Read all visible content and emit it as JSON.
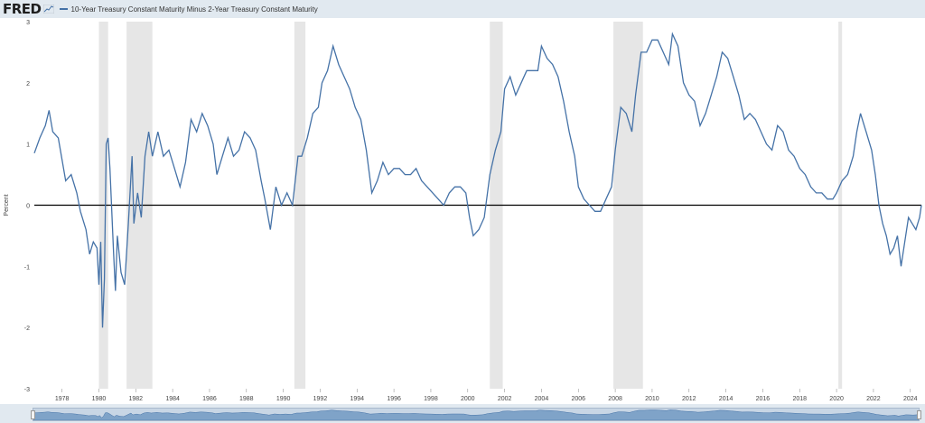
{
  "header": {
    "logo_text": "FRED",
    "logo_icon": "chart-line-icon",
    "legend_label": "10-Year Treasury Constant Maturity Minus 2-Year Treasury Constant Maturity",
    "series_color": "#4572a7"
  },
  "chart_data": {
    "type": "line",
    "title": "",
    "xlabel": "",
    "ylabel": "Percent",
    "xlim": [
      1976.5,
      2024.6
    ],
    "ylim": [
      -3,
      3
    ],
    "yticks": [
      -3,
      -2,
      -1,
      0,
      1,
      2,
      3
    ],
    "xticks": [
      "1978",
      "1980",
      "1982",
      "1984",
      "1986",
      "1988",
      "1990",
      "1992",
      "1994",
      "1996",
      "1998",
      "2000",
      "2002",
      "2004",
      "2006",
      "2008",
      "2010",
      "2012",
      "2014",
      "2016",
      "2018",
      "2020",
      "2022",
      "2024"
    ],
    "grid": false,
    "legend_position": "top-left",
    "recessions": [
      [
        1980.0,
        1980.5
      ],
      [
        1981.5,
        1982.9
      ],
      [
        1990.6,
        1991.2
      ],
      [
        2001.2,
        2001.9
      ],
      [
        2007.9,
        2009.5
      ],
      [
        2020.1,
        2020.3
      ]
    ],
    "series": [
      {
        "name": "10-Year Treasury Constant Maturity Minus 2-Year Treasury Constant Maturity",
        "color": "#4572a7",
        "points": [
          [
            1976.5,
            0.85
          ],
          [
            1976.8,
            1.1
          ],
          [
            1977.1,
            1.3
          ],
          [
            1977.3,
            1.55
          ],
          [
            1977.5,
            1.2
          ],
          [
            1977.8,
            1.1
          ],
          [
            1978.0,
            0.75
          ],
          [
            1978.2,
            0.4
          ],
          [
            1978.5,
            0.5
          ],
          [
            1978.8,
            0.2
          ],
          [
            1979.0,
            -0.1
          ],
          [
            1979.3,
            -0.4
          ],
          [
            1979.5,
            -0.8
          ],
          [
            1979.7,
            -0.6
          ],
          [
            1979.9,
            -0.7
          ],
          [
            1980.0,
            -1.3
          ],
          [
            1980.1,
            -0.6
          ],
          [
            1980.2,
            -2.0
          ],
          [
            1980.3,
            -1.2
          ],
          [
            1980.4,
            1.0
          ],
          [
            1980.5,
            1.1
          ],
          [
            1980.6,
            0.6
          ],
          [
            1980.8,
            -0.8
          ],
          [
            1980.9,
            -1.4
          ],
          [
            1981.0,
            -0.5
          ],
          [
            1981.2,
            -1.1
          ],
          [
            1981.4,
            -1.3
          ],
          [
            1981.6,
            -0.3
          ],
          [
            1981.8,
            0.8
          ],
          [
            1981.9,
            -0.3
          ],
          [
            1982.1,
            0.2
          ],
          [
            1982.3,
            -0.2
          ],
          [
            1982.5,
            0.8
          ],
          [
            1982.7,
            1.2
          ],
          [
            1982.9,
            0.8
          ],
          [
            1983.2,
            1.2
          ],
          [
            1983.5,
            0.8
          ],
          [
            1983.8,
            0.9
          ],
          [
            1984.1,
            0.6
          ],
          [
            1984.4,
            0.3
          ],
          [
            1984.7,
            0.7
          ],
          [
            1985.0,
            1.4
          ],
          [
            1985.3,
            1.2
          ],
          [
            1985.6,
            1.5
          ],
          [
            1985.9,
            1.3
          ],
          [
            1986.2,
            1.0
          ],
          [
            1986.4,
            0.5
          ],
          [
            1986.7,
            0.8
          ],
          [
            1987.0,
            1.1
          ],
          [
            1987.3,
            0.8
          ],
          [
            1987.6,
            0.9
          ],
          [
            1987.9,
            1.2
          ],
          [
            1988.2,
            1.1
          ],
          [
            1988.5,
            0.9
          ],
          [
            1988.8,
            0.4
          ],
          [
            1989.0,
            0.1
          ],
          [
            1989.3,
            -0.4
          ],
          [
            1989.6,
            0.3
          ],
          [
            1989.9,
            0.0
          ],
          [
            1990.2,
            0.2
          ],
          [
            1990.5,
            0.0
          ],
          [
            1990.8,
            0.8
          ],
          [
            1991.0,
            0.8
          ],
          [
            1991.3,
            1.1
          ],
          [
            1991.6,
            1.5
          ],
          [
            1991.9,
            1.6
          ],
          [
            1992.1,
            2.0
          ],
          [
            1992.4,
            2.2
          ],
          [
            1992.7,
            2.6
          ],
          [
            1993.0,
            2.3
          ],
          [
            1993.3,
            2.1
          ],
          [
            1993.6,
            1.9
          ],
          [
            1993.9,
            1.6
          ],
          [
            1994.2,
            1.4
          ],
          [
            1994.5,
            0.9
          ],
          [
            1994.8,
            0.2
          ],
          [
            1995.1,
            0.4
          ],
          [
            1995.4,
            0.7
          ],
          [
            1995.7,
            0.5
          ],
          [
            1996.0,
            0.6
          ],
          [
            1996.3,
            0.6
          ],
          [
            1996.6,
            0.5
          ],
          [
            1996.9,
            0.5
          ],
          [
            1997.2,
            0.6
          ],
          [
            1997.5,
            0.4
          ],
          [
            1997.8,
            0.3
          ],
          [
            1998.1,
            0.2
          ],
          [
            1998.4,
            0.1
          ],
          [
            1998.7,
            0.0
          ],
          [
            1999.0,
            0.2
          ],
          [
            1999.3,
            0.3
          ],
          [
            1999.6,
            0.3
          ],
          [
            1999.9,
            0.2
          ],
          [
            2000.1,
            -0.2
          ],
          [
            2000.3,
            -0.5
          ],
          [
            2000.6,
            -0.4
          ],
          [
            2000.9,
            -0.2
          ],
          [
            2001.2,
            0.5
          ],
          [
            2001.5,
            0.9
          ],
          [
            2001.8,
            1.2
          ],
          [
            2002.0,
            1.9
          ],
          [
            2002.3,
            2.1
          ],
          [
            2002.6,
            1.8
          ],
          [
            2002.9,
            2.0
          ],
          [
            2003.2,
            2.2
          ],
          [
            2003.5,
            2.2
          ],
          [
            2003.8,
            2.2
          ],
          [
            2004.0,
            2.6
          ],
          [
            2004.3,
            2.4
          ],
          [
            2004.6,
            2.3
          ],
          [
            2004.9,
            2.1
          ],
          [
            2005.2,
            1.7
          ],
          [
            2005.5,
            1.2
          ],
          [
            2005.8,
            0.8
          ],
          [
            2006.0,
            0.3
          ],
          [
            2006.3,
            0.1
          ],
          [
            2006.6,
            0.0
          ],
          [
            2006.9,
            -0.1
          ],
          [
            2007.2,
            -0.1
          ],
          [
            2007.5,
            0.1
          ],
          [
            2007.8,
            0.3
          ],
          [
            2008.0,
            0.9
          ],
          [
            2008.3,
            1.6
          ],
          [
            2008.6,
            1.5
          ],
          [
            2008.9,
            1.2
          ],
          [
            2009.1,
            1.8
          ],
          [
            2009.4,
            2.5
          ],
          [
            2009.7,
            2.5
          ],
          [
            2010.0,
            2.7
          ],
          [
            2010.3,
            2.7
          ],
          [
            2010.6,
            2.5
          ],
          [
            2010.9,
            2.3
          ],
          [
            2011.1,
            2.8
          ],
          [
            2011.4,
            2.6
          ],
          [
            2011.7,
            2.0
          ],
          [
            2012.0,
            1.8
          ],
          [
            2012.3,
            1.7
          ],
          [
            2012.6,
            1.3
          ],
          [
            2012.9,
            1.5
          ],
          [
            2013.2,
            1.8
          ],
          [
            2013.5,
            2.1
          ],
          [
            2013.8,
            2.5
          ],
          [
            2014.1,
            2.4
          ],
          [
            2014.4,
            2.1
          ],
          [
            2014.7,
            1.8
          ],
          [
            2015.0,
            1.4
          ],
          [
            2015.3,
            1.5
          ],
          [
            2015.6,
            1.4
          ],
          [
            2015.9,
            1.2
          ],
          [
            2016.2,
            1.0
          ],
          [
            2016.5,
            0.9
          ],
          [
            2016.8,
            1.3
          ],
          [
            2017.1,
            1.2
          ],
          [
            2017.4,
            0.9
          ],
          [
            2017.7,
            0.8
          ],
          [
            2018.0,
            0.6
          ],
          [
            2018.3,
            0.5
          ],
          [
            2018.6,
            0.3
          ],
          [
            2018.9,
            0.2
          ],
          [
            2019.2,
            0.2
          ],
          [
            2019.5,
            0.1
          ],
          [
            2019.8,
            0.1
          ],
          [
            2020.0,
            0.2
          ],
          [
            2020.3,
            0.4
          ],
          [
            2020.6,
            0.5
          ],
          [
            2020.9,
            0.8
          ],
          [
            2021.1,
            1.2
          ],
          [
            2021.3,
            1.5
          ],
          [
            2021.6,
            1.2
          ],
          [
            2021.9,
            0.9
          ],
          [
            2022.1,
            0.5
          ],
          [
            2022.3,
            0.0
          ],
          [
            2022.5,
            -0.3
          ],
          [
            2022.7,
            -0.5
          ],
          [
            2022.9,
            -0.8
          ],
          [
            2023.1,
            -0.7
          ],
          [
            2023.3,
            -0.5
          ],
          [
            2023.5,
            -1.0
          ],
          [
            2023.7,
            -0.6
          ],
          [
            2023.9,
            -0.2
          ],
          [
            2024.1,
            -0.3
          ],
          [
            2024.3,
            -0.4
          ],
          [
            2024.5,
            -0.2
          ],
          [
            2024.6,
            0.0
          ]
        ]
      }
    ]
  }
}
